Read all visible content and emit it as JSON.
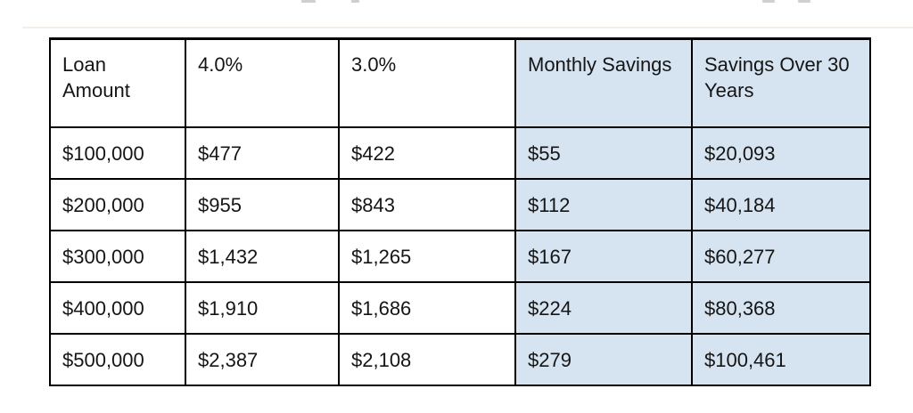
{
  "chart_data": {
    "type": "table",
    "title": "",
    "columns": [
      "Loan Amount",
      "4.0%",
      "3.0%",
      "Monthly Savings",
      "Savings Over 30 Years"
    ],
    "highlighted_columns": [
      3,
      4
    ],
    "rows": [
      [
        "$100,000",
        "$477",
        "$422",
        "$55",
        "$20,093"
      ],
      [
        "$200,000",
        "$955",
        "$843",
        "$112",
        "$40,184"
      ],
      [
        "$300,000",
        "$1,432",
        "$1,265",
        "$167",
        "$60,277"
      ],
      [
        "$400,000",
        "$1,910",
        "$1,686",
        "$224",
        "$80,368"
      ],
      [
        "$500,000",
        "$2,387",
        "$2,108",
        "$279",
        "$100,461"
      ]
    ]
  },
  "colors": {
    "highlight_background": "#d6e3f1",
    "border": "#000000",
    "text": "#151515",
    "page_background": "#ffffff"
  }
}
